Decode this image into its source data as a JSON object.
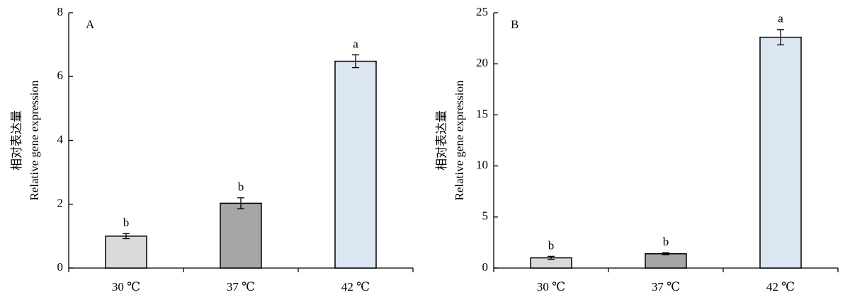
{
  "chart_data": [
    {
      "type": "bar",
      "panel_label": "A",
      "y_label": [
        "相对表达量",
        "Relative gene expression"
      ],
      "categories": [
        "30 ℃",
        "37 ℃",
        "42 ℃"
      ],
      "values": [
        1.0,
        2.03,
        6.48
      ],
      "errors": [
        0.08,
        0.17,
        0.2
      ],
      "letters": [
        "b",
        "b",
        "a"
      ],
      "colors": [
        "#d9d9d9",
        "#a6a6a6",
        "#dce6f2"
      ],
      "ylim": [
        0,
        8
      ],
      "yticks": [
        0,
        2,
        4,
        6,
        8
      ]
    },
    {
      "type": "bar",
      "panel_label": "B",
      "y_label": [
        "相对表达量",
        "Relative gene expression"
      ],
      "categories": [
        "30 ℃",
        "37 ℃",
        "42 ℃"
      ],
      "values": [
        1.0,
        1.4,
        22.6
      ],
      "errors": [
        0.15,
        0.1,
        0.75
      ],
      "letters": [
        "b",
        "b",
        "a"
      ],
      "colors": [
        "#d9d9d9",
        "#a6a6a6",
        "#dce6f2"
      ],
      "ylim": [
        0,
        25
      ],
      "yticks": [
        0,
        5,
        10,
        15,
        20,
        25
      ]
    }
  ]
}
